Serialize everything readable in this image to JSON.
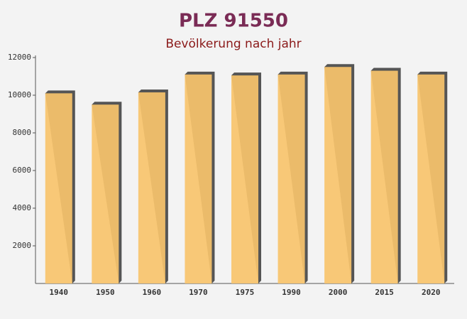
{
  "chart_data": {
    "type": "bar",
    "title": "PLZ 91550",
    "subtitle": "Bevölkerung nach jahr",
    "categories": [
      "1940",
      "1950",
      "1960",
      "1970",
      "1975",
      "1990",
      "2000",
      "2015",
      "2020"
    ],
    "values": [
      10100,
      9500,
      10150,
      11100,
      11050,
      11100,
      11500,
      11300,
      11100
    ],
    "color": "#f8c46c",
    "ylim": [
      0,
      12000
    ],
    "yticks": [
      2000,
      4000,
      6000,
      8000,
      10000,
      12000
    ],
    "grid": false
  }
}
